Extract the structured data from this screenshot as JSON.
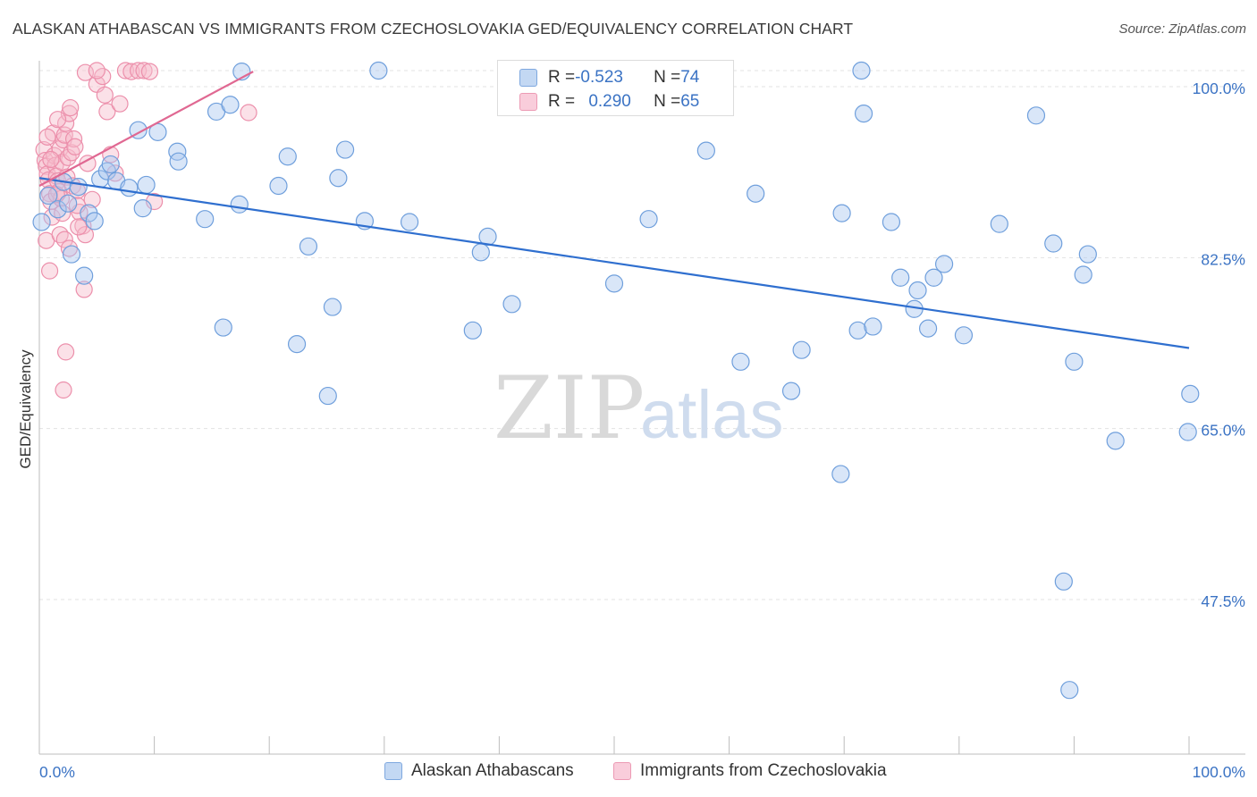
{
  "title": "ALASKAN ATHABASCAN VS IMMIGRANTS FROM CZECHOSLOVAKIA GED/EQUIVALENCY CORRELATION CHART",
  "source": "Source: ZipAtlas.com",
  "watermark": {
    "zip": "ZIP",
    "atlas": "atlas"
  },
  "colors": {
    "blue_fill": "#aac8ef",
    "blue_stroke": "#6f9fdc",
    "blue_line": "#2f6fcf",
    "pink_fill": "#f7bccd",
    "pink_stroke": "#ec8fab",
    "pink_line": "#e06892",
    "axis_label": "#3b73c4",
    "grid": "#e3e3e3"
  },
  "legend_box": {
    "rows": [
      {
        "series": "blue",
        "r_label": "R = ",
        "r_value": "-0.523",
        "n_label": "N = ",
        "n_value": "74"
      },
      {
        "series": "pink",
        "r_label": "R = ",
        "r_value": "0.290",
        "n_label": "N = ",
        "n_value": "65"
      }
    ]
  },
  "bottom_legend": [
    {
      "series": "blue",
      "label": "Alaskan Athabascans"
    },
    {
      "series": "pink",
      "label": "Immigrants from Czechoslovakia"
    }
  ],
  "chart_data": {
    "type": "scatter",
    "title": "ALASKAN ATHABASCAN VS IMMIGRANTS FROM CZECHOSLOVAKIA GED/EQUIVALENCY CORRELATION CHART",
    "xlabel": "",
    "ylabel": "GED/Equivalency",
    "xlim": [
      0,
      100
    ],
    "ylim": [
      32,
      100
    ],
    "x_tick_labels": [
      "0.0%",
      "100.0%"
    ],
    "y_ticks": [
      100.0,
      82.5,
      65.0,
      47.5
    ],
    "y_tick_labels": [
      "100.0%",
      "82.5%",
      "65.0%",
      "47.5%"
    ],
    "grid": true,
    "legend_position": "bottom",
    "series": [
      {
        "name": "Alaskan Athabascans",
        "color": "blue",
        "R": -0.523,
        "N": 74,
        "trend": {
          "x": [
            0,
            100
          ],
          "y": [
            89.0,
            71.6
          ]
        },
        "points": [
          [
            0.2,
            84.5
          ],
          [
            0.8,
            87.2
          ],
          [
            1.6,
            85.8
          ],
          [
            2.1,
            88.6
          ],
          [
            2.5,
            86.4
          ],
          [
            2.8,
            81.2
          ],
          [
            3.4,
            88.1
          ],
          [
            3.9,
            79.0
          ],
          [
            4.3,
            85.4
          ],
          [
            4.8,
            84.6
          ],
          [
            5.3,
            88.9
          ],
          [
            5.9,
            89.7
          ],
          [
            6.2,
            90.4
          ],
          [
            6.7,
            88.7
          ],
          [
            7.8,
            88.0
          ],
          [
            8.6,
            93.9
          ],
          [
            9.0,
            85.9
          ],
          [
            9.3,
            88.3
          ],
          [
            10.3,
            93.7
          ],
          [
            12.0,
            91.7
          ],
          [
            12.1,
            90.7
          ],
          [
            14.4,
            84.8
          ],
          [
            15.4,
            95.8
          ],
          [
            16.0,
            73.7
          ],
          [
            16.6,
            96.5
          ],
          [
            17.4,
            86.3
          ],
          [
            17.6,
            99.9
          ],
          [
            20.8,
            88.2
          ],
          [
            21.6,
            91.2
          ],
          [
            22.4,
            72.0
          ],
          [
            23.4,
            82.0
          ],
          [
            25.1,
            66.7
          ],
          [
            25.5,
            75.8
          ],
          [
            26.0,
            89.0
          ],
          [
            26.6,
            91.9
          ],
          [
            28.3,
            84.6
          ],
          [
            29.5,
            100.0
          ],
          [
            32.2,
            84.5
          ],
          [
            37.7,
            73.4
          ],
          [
            38.4,
            81.4
          ],
          [
            39.0,
            83.0
          ],
          [
            41.1,
            76.1
          ],
          [
            50.0,
            78.2
          ],
          [
            53.0,
            84.8
          ],
          [
            58.0,
            91.8
          ],
          [
            61.0,
            70.2
          ],
          [
            62.3,
            87.4
          ],
          [
            65.4,
            67.2
          ],
          [
            66.3,
            71.4
          ],
          [
            69.7,
            58.7
          ],
          [
            69.8,
            85.4
          ],
          [
            71.2,
            73.4
          ],
          [
            71.5,
            100.0
          ],
          [
            71.7,
            95.6
          ],
          [
            72.5,
            73.8
          ],
          [
            74.1,
            84.5
          ],
          [
            74.9,
            78.8
          ],
          [
            76.1,
            75.6
          ],
          [
            76.4,
            77.5
          ],
          [
            77.3,
            73.6
          ],
          [
            77.8,
            78.8
          ],
          [
            78.7,
            80.2
          ],
          [
            80.4,
            72.9
          ],
          [
            83.5,
            84.3
          ],
          [
            86.7,
            95.4
          ],
          [
            88.2,
            82.3
          ],
          [
            89.1,
            47.7
          ],
          [
            89.6,
            36.6
          ],
          [
            90.0,
            70.2
          ],
          [
            90.8,
            79.1
          ],
          [
            91.2,
            81.2
          ],
          [
            93.6,
            62.1
          ],
          [
            99.9,
            63.0
          ],
          [
            100.1,
            66.9
          ]
        ]
      },
      {
        "name": "Immigrants from Czechoslovakia",
        "color": "pink",
        "R": 0.29,
        "N": 65,
        "trend": {
          "x": [
            0,
            18.6
          ],
          "y": [
            88.2,
            99.9
          ]
        },
        "points": [
          [
            0.4,
            91.9
          ],
          [
            0.5,
            90.8
          ],
          [
            0.6,
            90.2
          ],
          [
            0.7,
            89.4
          ],
          [
            0.8,
            88.8
          ],
          [
            0.9,
            87.4
          ],
          [
            1.0,
            86.6
          ],
          [
            1.1,
            85.0
          ],
          [
            1.2,
            93.6
          ],
          [
            1.3,
            91.3
          ],
          [
            1.4,
            90.3
          ],
          [
            1.5,
            89.2
          ],
          [
            1.6,
            88.7
          ],
          [
            1.7,
            87.6
          ],
          [
            1.8,
            92.0
          ],
          [
            1.9,
            86.9
          ],
          [
            2.0,
            90.6
          ],
          [
            2.1,
            92.9
          ],
          [
            2.2,
            93.4
          ],
          [
            2.3,
            94.6
          ],
          [
            2.4,
            89.1
          ],
          [
            2.5,
            91.1
          ],
          [
            2.6,
            95.6
          ],
          [
            2.7,
            96.2
          ],
          [
            2.8,
            91.6
          ],
          [
            2.9,
            88.2
          ],
          [
            3.0,
            93.0
          ],
          [
            3.1,
            92.2
          ],
          [
            3.3,
            87.7
          ],
          [
            3.5,
            85.5
          ],
          [
            3.8,
            84.1
          ],
          [
            4.0,
            83.2
          ],
          [
            4.2,
            90.5
          ],
          [
            4.6,
            86.8
          ],
          [
            5.0,
            98.6
          ],
          [
            5.5,
            99.4
          ],
          [
            5.7,
            97.5
          ],
          [
            5.9,
            95.8
          ],
          [
            6.2,
            91.4
          ],
          [
            6.6,
            89.5
          ],
          [
            7.0,
            96.6
          ],
          [
            7.5,
            100.0
          ],
          [
            8.0,
            99.9
          ],
          [
            8.6,
            100.0
          ],
          [
            9.1,
            100.0
          ],
          [
            9.6,
            99.9
          ],
          [
            10.0,
            86.6
          ],
          [
            0.6,
            82.6
          ],
          [
            0.9,
            79.5
          ],
          [
            1.8,
            83.2
          ],
          [
            2.2,
            82.7
          ],
          [
            2.6,
            81.8
          ],
          [
            2.3,
            71.2
          ],
          [
            2.1,
            67.3
          ],
          [
            3.9,
            77.6
          ],
          [
            1.5,
            87.3
          ],
          [
            1.0,
            90.9
          ],
          [
            2.0,
            85.4
          ],
          [
            3.3,
            86.2
          ],
          [
            4.0,
            99.8
          ],
          [
            5.0,
            100.0
          ],
          [
            0.7,
            93.2
          ],
          [
            1.6,
            95.0
          ],
          [
            3.4,
            84.0
          ],
          [
            18.2,
            95.7
          ]
        ]
      }
    ]
  }
}
